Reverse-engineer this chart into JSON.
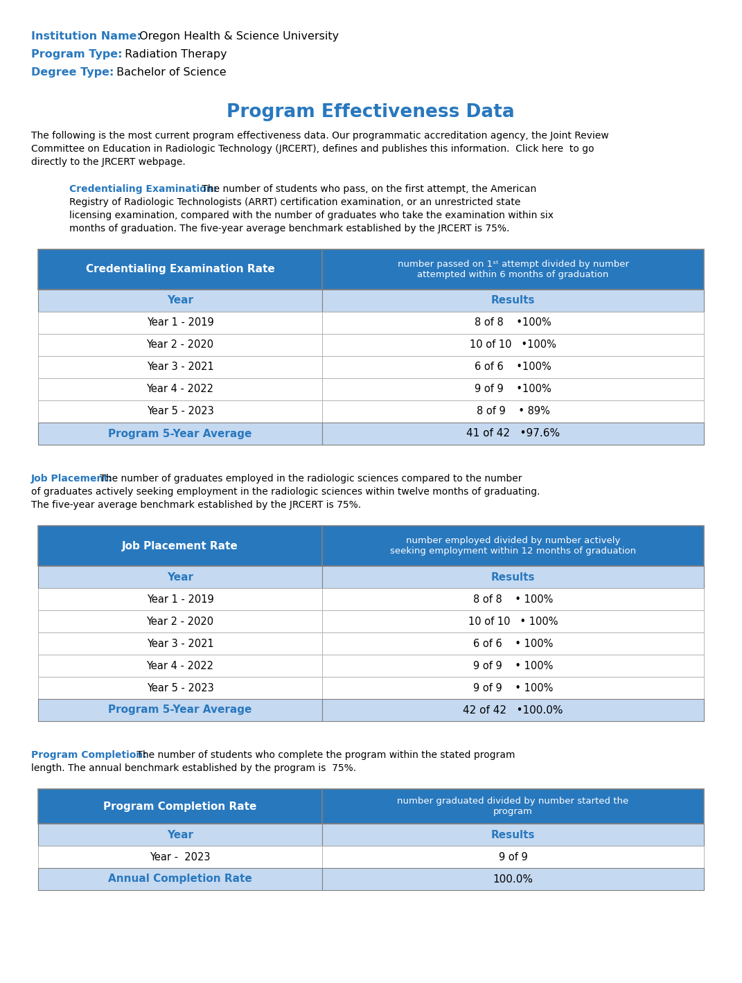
{
  "institution_name": "Oregon Health & Science University",
  "program_type": "Radiation Therapy",
  "degree_type": "Bachelor of Science",
  "main_title": "Program Effectiveness Data",
  "credentialing_label": "Credentialing Examination:",
  "credentialing_desc_rest": " The number of students who pass, on the first attempt, the American\nRegistry of Radiologic Technologists (ARRT) certification examination, or an unrestricted state\nlicensing examination, compared with the number of graduates who take the examination within six\nmonths of graduation. The five-year average benchmark established by the JRCERT is 75%.",
  "credentialing_header1": "Credentialing Examination Rate",
  "credentialing_header2": "number passed on 1ˢᵗ attempt divided by number\nattempted within 6 months of graduation",
  "credentialing_years": [
    "Year 1 - 2019",
    "Year 2 - 2020",
    "Year 3 - 2021",
    "Year 4 - 2022",
    "Year 5 - 2023"
  ],
  "credentialing_results": [
    "8 of 8    •100%",
    "10 of 10   •100%",
    "6 of 6    •100%",
    "9 of 9    •100%",
    "8 of 9    • 89%"
  ],
  "credentialing_average_label": "Program 5-Year Average",
  "credentialing_average_result": "41 of 42   •97.6%",
  "job_label": "Job Placement:",
  "job_desc_rest": " The number of graduates employed in the radiologic sciences compared to the number\nof graduates actively seeking employment in the radiologic sciences within twelve months of graduating.\nThe five-year average benchmark established by the JRCERT is 75%.",
  "job_header1": "Job Placement Rate",
  "job_header2": "number employed divided by number actively\nseeking employment within 12 months of graduation",
  "job_years": [
    "Year 1 - 2019",
    "Year 2 - 2020",
    "Year 3 - 2021",
    "Year 4 - 2022",
    "Year 5 - 2023"
  ],
  "job_results": [
    "8 of 8    • 100%",
    "10 of 10   • 100%",
    "6 of 6    • 100%",
    "9 of 9    • 100%",
    "9 of 9    • 100%"
  ],
  "job_average_label": "Program 5-Year Average",
  "job_average_result": "42 of 42   •100.0%",
  "completion_label": "Program Completion:",
  "completion_desc_rest": " The number of students who complete the program within the stated program\nlength. The annual benchmark established by the program is  75%.",
  "completion_header1": "Program Completion Rate",
  "completion_header2": "number graduated divided by number started the\nprogram",
  "completion_years": [
    "Year -  2023"
  ],
  "completion_results": [
    "9 of 9"
  ],
  "completion_average_label": "Annual Completion Rate",
  "completion_average_result": "100.0%",
  "color_blue": "#2878BE",
  "color_blue_light": "#C5D9F1",
  "color_white": "#FFFFFF",
  "color_black": "#000000",
  "color_border": "#7F7F7F"
}
